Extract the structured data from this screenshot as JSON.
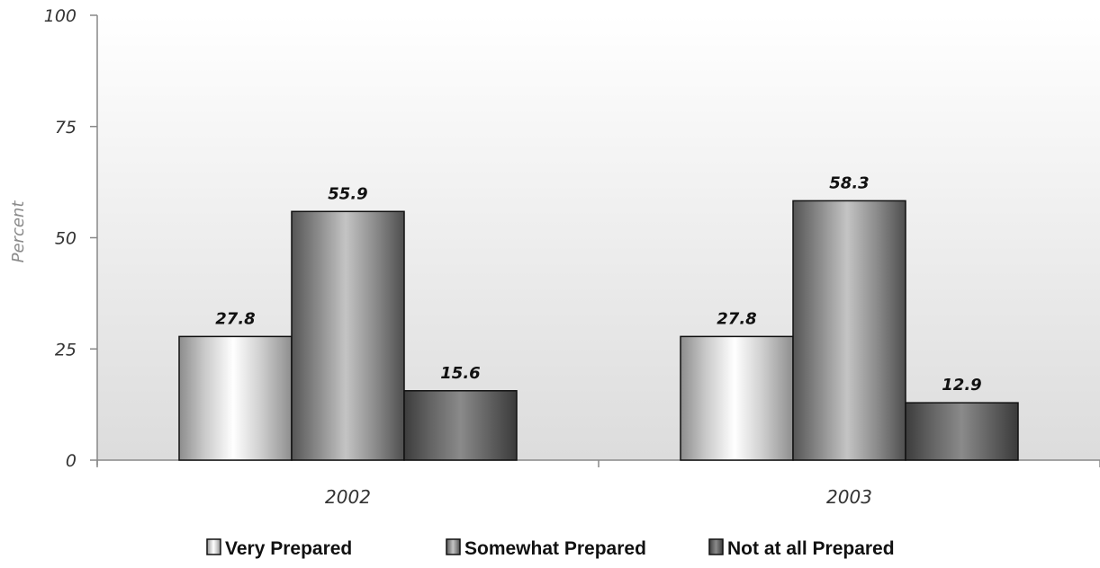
{
  "chart_data": {
    "type": "bar",
    "title": "",
    "xlabel": "",
    "ylabel": "Percent",
    "ylim": [
      0,
      100
    ],
    "yticks": [
      0,
      25,
      50,
      75,
      100
    ],
    "categories": [
      "2002",
      "2003"
    ],
    "series": [
      {
        "name": "Very Prepared",
        "values": [
          27.8,
          27.8
        ],
        "style": "white"
      },
      {
        "name": "Somewhat Prepared",
        "values": [
          55.9,
          58.3
        ],
        "style": "light-gray"
      },
      {
        "name": "Not at all Prepared",
        "values": [
          15.6,
          12.9
        ],
        "style": "dark-gray"
      }
    ],
    "grid": false,
    "legend": "bottom",
    "background": "gradient-white-to-gray",
    "colors": {
      "bar_border": "#111111",
      "axis": "#888888",
      "plot_top": "#ffffff",
      "plot_bottom": "#dcdcdc"
    }
  }
}
